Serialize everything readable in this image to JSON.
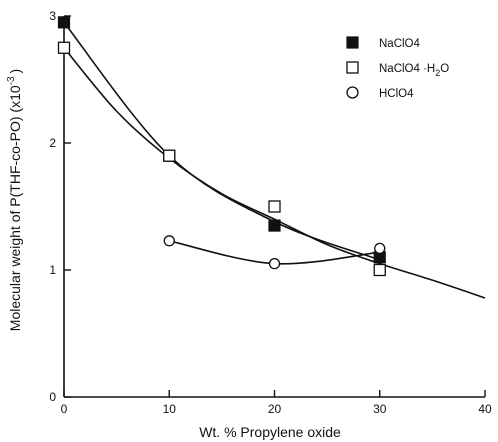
{
  "chart_data": {
    "type": "scatter",
    "xlabel": "Wt. % Propylene oxide",
    "ylabel": "Molecular weight of P(THF-co-PO) (x10",
    "ylabel_exp": "-3",
    "ylabel_close": ")",
    "xlim": [
      0,
      40
    ],
    "ylim": [
      0,
      3
    ],
    "x_ticks": [
      0,
      10,
      20,
      30,
      40
    ],
    "y_ticks": [
      0,
      1,
      2,
      3
    ],
    "grid": false,
    "legend_position": "top-right",
    "series": [
      {
        "name": "NaClO4",
        "marker": "filled-square",
        "points": [
          [
            0,
            2.95
          ],
          [
            10,
            1.9
          ],
          [
            20,
            1.35
          ],
          [
            30,
            1.1
          ]
        ],
        "curve": [
          [
            0,
            2.95
          ],
          [
            10,
            1.9
          ],
          [
            20,
            1.38
          ],
          [
            30,
            1.08
          ]
        ]
      },
      {
        "name": "NaClO4·H2O",
        "marker": "open-square",
        "points": [
          [
            0,
            2.75
          ],
          [
            10,
            1.9
          ],
          [
            20,
            1.5
          ],
          [
            30,
            1.0
          ]
        ],
        "curve": [
          [
            0,
            2.75
          ],
          [
            5,
            2.25
          ],
          [
            10,
            1.88
          ],
          [
            15,
            1.6
          ],
          [
            20,
            1.4
          ],
          [
            25,
            1.2
          ],
          [
            30,
            1.05
          ],
          [
            35,
            0.92
          ],
          [
            40,
            0.78
          ]
        ]
      },
      {
        "name": "HClO4",
        "marker": "open-circle",
        "points": [
          [
            10,
            1.23
          ],
          [
            20,
            1.05
          ],
          [
            30,
            1.17
          ]
        ],
        "curve": [
          [
            10,
            1.23
          ],
          [
            20,
            1.05
          ],
          [
            30,
            1.14
          ]
        ]
      }
    ]
  },
  "legend": {
    "items": [
      {
        "label": "NaClO4",
        "marker": "filled-square"
      },
      {
        "label_main": "NaClO4 ·H",
        "label_sub": "2",
        "label_tail": "O",
        "marker": "open-square"
      },
      {
        "label": "HClO4",
        "marker": "open-circle"
      }
    ]
  }
}
